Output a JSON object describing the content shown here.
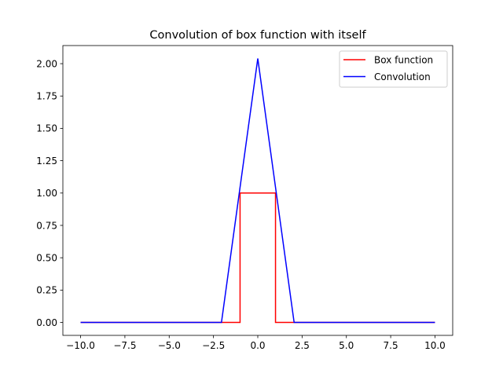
{
  "chart_data": {
    "type": "line",
    "title": "Convolution of box function with itself",
    "xlabel": "",
    "ylabel": "",
    "xlim": [
      -11.0,
      11.0
    ],
    "ylim": [
      -0.1,
      2.14
    ],
    "grid": false,
    "legend_position": "top-right",
    "x_ticks": [
      -10.0,
      -7.5,
      -5.0,
      -2.5,
      0.0,
      2.5,
      5.0,
      7.5,
      10.0
    ],
    "x_tick_labels": [
      "−10.0",
      "−7.5",
      "−5.0",
      "−2.5",
      "0.0",
      "2.5",
      "5.0",
      "7.5",
      "10.0"
    ],
    "y_ticks": [
      0.0,
      0.25,
      0.5,
      0.75,
      1.0,
      1.25,
      1.5,
      1.75,
      2.0
    ],
    "y_tick_labels": [
      "0.00",
      "0.25",
      "0.50",
      "0.75",
      "1.00",
      "1.25",
      "1.50",
      "1.75",
      "2.00"
    ],
    "series": [
      {
        "name": "Box function",
        "color": "#ff0000",
        "x": [
          -10.0,
          -1.0,
          -1.0,
          1.0,
          1.0,
          10.0
        ],
        "y": [
          0.0,
          0.0,
          1.0,
          1.0,
          0.0,
          0.0
        ]
      },
      {
        "name": "Convolution",
        "color": "#0000ff",
        "x": [
          -10.0,
          -2.05,
          0.0,
          2.05,
          10.0
        ],
        "y": [
          0.0,
          0.0,
          2.04,
          0.0,
          0.0
        ]
      }
    ]
  }
}
